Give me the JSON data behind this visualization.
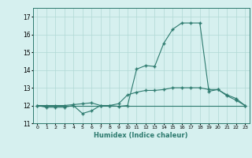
{
  "title": "",
  "xlabel": "Humidex (Indice chaleur)",
  "x_values": [
    0,
    1,
    2,
    3,
    4,
    5,
    6,
    7,
    8,
    9,
    10,
    11,
    12,
    13,
    14,
    15,
    16,
    17,
    18,
    19,
    20,
    21,
    22,
    23
  ],
  "line1": [
    12.0,
    11.9,
    11.9,
    11.9,
    12.0,
    11.55,
    11.7,
    12.0,
    12.0,
    11.95,
    12.0,
    14.05,
    14.25,
    14.2,
    15.5,
    16.3,
    16.65,
    16.65,
    16.65,
    12.8,
    12.9,
    12.55,
    12.3,
    12.0
  ],
  "line2": [
    12.0,
    12.0,
    12.0,
    12.0,
    12.05,
    12.1,
    12.15,
    12.0,
    12.0,
    12.1,
    12.6,
    12.75,
    12.85,
    12.85,
    12.9,
    13.0,
    13.0,
    13.0,
    13.0,
    12.9,
    12.9,
    12.6,
    12.4,
    12.0
  ],
  "line3": [
    12.0,
    12.0,
    12.0,
    12.0,
    12.0,
    12.0,
    12.0,
    12.0,
    12.0,
    12.0,
    12.0,
    12.0,
    12.0,
    12.0,
    12.0,
    12.0,
    12.0,
    12.0,
    12.0,
    12.0,
    12.0,
    12.0,
    12.0,
    12.0
  ],
  "line_color": "#2d7a6e",
  "bg_color": "#d6f0ef",
  "grid_color": "#b0d8d4",
  "ylim": [
    11.0,
    17.5
  ],
  "yticks": [
    11,
    12,
    13,
    14,
    15,
    16,
    17
  ],
  "marker": "+"
}
